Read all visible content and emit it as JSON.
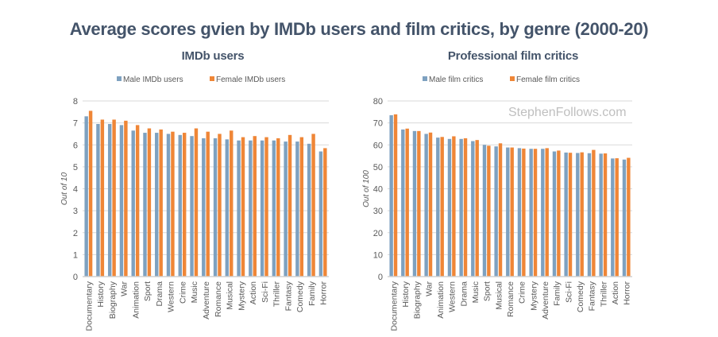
{
  "title": "Average scores gvien by IMDb users and film critics, by genre (2000-20)",
  "watermark": "StephenFollows.com",
  "colors": {
    "male": "#7ea1c0",
    "female": "#ef8637",
    "text": "#44546a",
    "axis_text": "#595959",
    "grid": "#d9d9d9",
    "watermark": "#bfbfbf"
  },
  "chart_data": [
    {
      "type": "bar",
      "title": "IMDb users",
      "xlabel": "",
      "ylabel": "Out of 10",
      "ylim": [
        0,
        8
      ],
      "yticks": [
        0,
        1,
        2,
        3,
        4,
        5,
        6,
        7,
        8
      ],
      "grid": true,
      "legend": "top-center",
      "categories": [
        "Documentary",
        "History",
        "Biography",
        "War",
        "Animation",
        "Sport",
        "Drama",
        "Western",
        "Crime",
        "Music",
        "Adventure",
        "Romance",
        "Musical",
        "Mystery",
        "Action",
        "Sci-Fi",
        "Thriller",
        "Fantasy",
        "Comedy",
        "Family",
        "Horror"
      ],
      "series": [
        {
          "name": "Male IMDb users",
          "values": [
            7.3,
            6.95,
            6.95,
            6.9,
            6.65,
            6.55,
            6.55,
            6.5,
            6.45,
            6.4,
            6.3,
            6.3,
            6.25,
            6.2,
            6.2,
            6.2,
            6.2,
            6.15,
            6.15,
            6.05,
            5.7
          ]
        },
        {
          "name": "Female IMDb users",
          "values": [
            7.55,
            7.15,
            7.15,
            7.1,
            6.9,
            6.75,
            6.7,
            6.6,
            6.55,
            6.75,
            6.6,
            6.5,
            6.65,
            6.35,
            6.4,
            6.35,
            6.3,
            6.45,
            6.35,
            6.5,
            5.85
          ]
        }
      ]
    },
    {
      "type": "bar",
      "title": "Professional film critics",
      "xlabel": "",
      "ylabel": "Out of 100",
      "ylim": [
        0,
        80
      ],
      "yticks": [
        0,
        10,
        20,
        30,
        40,
        50,
        60,
        70,
        80
      ],
      "grid": true,
      "legend": "top-center",
      "categories": [
        "Documentary",
        "History",
        "Biography",
        "War",
        "Animation",
        "Western",
        "Drama",
        "Music",
        "Sport",
        "Musical",
        "Romance",
        "Crime",
        "Mystery",
        "Adventure",
        "Family",
        "Sci-Fi",
        "Comedy",
        "Fantasy",
        "Thriller",
        "Action",
        "Horror"
      ],
      "series": [
        {
          "name": "Male film critics",
          "values": [
            73.5,
            67,
            66.3,
            65,
            63.3,
            62.7,
            62.7,
            61.7,
            60,
            59.3,
            58.8,
            58.5,
            58.2,
            58.2,
            57,
            56.5,
            56.3,
            56.2,
            56,
            53.8,
            53.3
          ]
        },
        {
          "name": "Female film critics",
          "values": [
            73.9,
            67.4,
            66.3,
            65.6,
            63.6,
            63.9,
            63,
            62.2,
            59.6,
            60.7,
            58.8,
            58.3,
            58.2,
            58.5,
            57.4,
            56.4,
            56.6,
            57.7,
            56.1,
            53.9,
            54.1
          ]
        }
      ]
    }
  ]
}
